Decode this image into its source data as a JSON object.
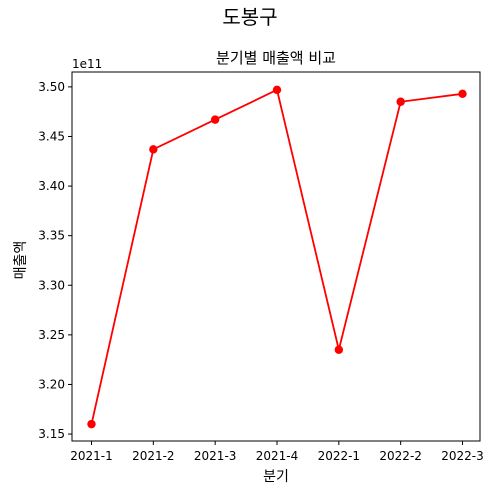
{
  "chart_data": {
    "type": "line",
    "suptitle": "도봉구",
    "title": "분기별 매출액 비교",
    "xlabel": "분기",
    "ylabel": "매출액",
    "y_offset_label": "1e11",
    "categories": [
      "2021-1",
      "2021-2",
      "2021-3",
      "2021-4",
      "2022-1",
      "2022-2",
      "2022-3"
    ],
    "series": [
      {
        "color": "#ff0000",
        "values": [
          3.16,
          3.437,
          3.467,
          3.497,
          3.235,
          3.485,
          3.493
        ]
      }
    ],
    "yticks": [
      "3.15",
      "3.20",
      "3.25",
      "3.30",
      "3.35",
      "3.40",
      "3.45",
      "3.50"
    ],
    "ylim": [
      3.143,
      3.515
    ],
    "grid": false,
    "marker": "circle"
  }
}
